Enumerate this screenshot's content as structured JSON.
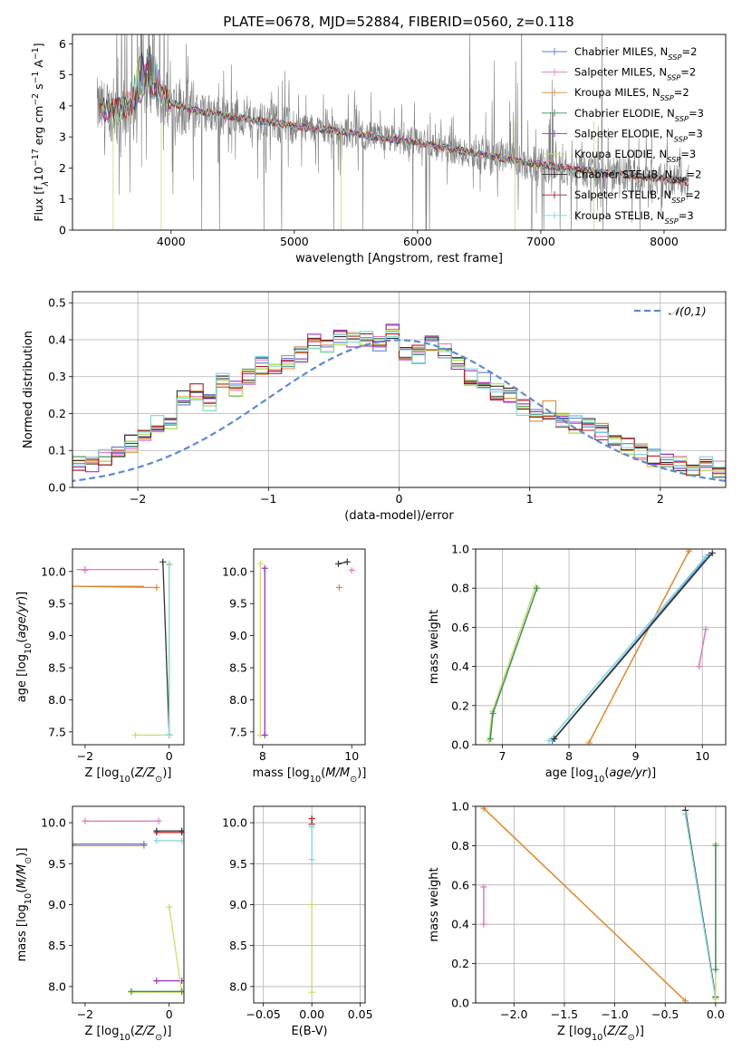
{
  "title": "PLATE=0678, MJD=52884, FIBERID=0560, z=0.118",
  "colors": {
    "Chabrier MILES": "#5b7fd6",
    "Salpeter MILES": "#e377c2",
    "Kroupa MILES": "#e0882e",
    "Chabrier ELODIE": "#3f8f5e",
    "Salpeter ELODIE": "#9b30c7",
    "Kroupa ELODIE": "#c5e06b",
    "Chabrier STELIB": "#333333",
    "Salpeter STELIB": "#b71c1c",
    "Kroupa STELIB": "#7fd8d8",
    "data": "#808080",
    "normal": "#5b8ad6"
  },
  "chart_data": [
    {
      "id": "spectrum",
      "type": "line",
      "title": "PLATE=0678, MJD=52884, FIBERID=0560, z=0.118",
      "xlabel": "wavelength [Angstrom, rest frame]",
      "ylabel": "Flux [f$_\\lambda$10$^{-17}$ erg cm$^{-2}$ s$^{-1}$ A$^{-1}$]",
      "ylabel_parts": {
        "pre": "Flux [f",
        "sub": "λ",
        "mid": "10",
        "exp1": "−17",
        "mid2": " erg cm",
        "exp2": "−2",
        "mid3": " s",
        "exp3": "−1",
        "end": " A",
        "exp4": "−1",
        "close": "]"
      },
      "xlim": [
        3200,
        8500
      ],
      "ylim": [
        0,
        6.3
      ],
      "xticks": [
        4000,
        5000,
        6000,
        7000,
        8000
      ],
      "yticks": [
        0,
        1,
        2,
        3,
        4,
        5,
        6
      ],
      "legend_position": "top-right",
      "legend": [
        {
          "name": "Chabrier MILES",
          "nssp": "2"
        },
        {
          "name": "Salpeter MILES",
          "nssp": "2"
        },
        {
          "name": "Kroupa MILES",
          "nssp": "2"
        },
        {
          "name": "Chabrier ELODIE",
          "nssp": "3"
        },
        {
          "name": "Salpeter ELODIE",
          "nssp": "3"
        },
        {
          "name": "Kroupa ELODIE",
          "nssp": "3"
        },
        {
          "name": "Chabrier STELIB",
          "nssp": "2"
        },
        {
          "name": "Salpeter STELIB",
          "nssp": "2"
        },
        {
          "name": "Kroupa STELIB",
          "nssp": "3"
        }
      ],
      "continuum": [
        [
          3400,
          3.95
        ],
        [
          3500,
          3.8
        ],
        [
          3600,
          3.9
        ],
        [
          3700,
          4.2
        ],
        [
          3800,
          4.8
        ],
        [
          3900,
          4.5
        ],
        [
          4000,
          4.1
        ],
        [
          4200,
          3.85
        ],
        [
          4500,
          3.65
        ],
        [
          5000,
          3.35
        ],
        [
          5500,
          3.1
        ],
        [
          6000,
          2.8
        ],
        [
          6500,
          2.45
        ],
        [
          7000,
          2.1
        ],
        [
          7500,
          1.85
        ],
        [
          8000,
          1.65
        ],
        [
          8200,
          1.55
        ]
      ],
      "data_wavelength_range": [
        3400,
        8200
      ]
    },
    {
      "id": "residuals",
      "type": "histogram",
      "xlabel": "(data-model)/error",
      "ylabel": "Normed distribution",
      "xlim": [
        -2.5,
        2.5
      ],
      "ylim": [
        0,
        0.53
      ],
      "xticks": [
        -2,
        -1,
        0,
        1,
        2
      ],
      "xtick_labels": [
        "−2",
        "−1",
        "0",
        "1",
        "2"
      ],
      "yticks": [
        0.0,
        0.1,
        0.2,
        0.3,
        0.4,
        0.5
      ],
      "ytick_labels": [
        "0.0",
        "0.1",
        "0.2",
        "0.3",
        "0.4",
        "0.5"
      ],
      "legend": "𝒩(0,1)",
      "legend_position": "top-right",
      "normal": {
        "mean": 0,
        "sigma": 1
      },
      "bin_width": 0.1,
      "base_histogram": [
        0.03,
        0.035,
        0.07,
        0.06,
        0.065,
        0.08,
        0.1,
        0.12,
        0.14,
        0.17,
        0.18,
        0.24,
        0.26,
        0.23,
        0.29,
        0.27,
        0.3,
        0.33,
        0.31,
        0.34,
        0.36,
        0.39,
        0.38,
        0.41,
        0.4,
        0.4,
        0.39,
        0.42,
        0.37,
        0.36,
        0.39,
        0.37,
        0.33,
        0.3,
        0.29,
        0.26,
        0.25,
        0.22,
        0.2,
        0.21,
        0.18,
        0.17,
        0.17,
        0.15,
        0.12,
        0.11,
        0.1,
        0.08,
        0.07,
        0.06,
        0.05,
        0.07,
        0.05,
        0.04,
        0.04,
        0.03
      ]
    },
    {
      "id": "age_vs_Z",
      "type": "scatter",
      "xlabel": "Z [log$_{10}$(Z/Z$_\\odot$)]",
      "ylabel": "age  [log$_{10}$(age/yr)]",
      "xlim": [
        -2.3,
        0.35
      ],
      "ylim": [
        7.3,
        10.35
      ],
      "xticks": [
        -2,
        0
      ],
      "xtick_labels": [
        "−2",
        "0"
      ],
      "yticks": [
        7.5,
        8.0,
        8.5,
        9.0,
        9.5,
        10.0
      ],
      "ytick_labels": [
        "7.5",
        "8.0",
        "8.5",
        "9.0",
        "9.5",
        "10.0"
      ],
      "series": [
        {
          "model": "Salpeter MILES",
          "points": [
            [
              -2.0,
              10.03
            ],
            [
              -2.0,
              10.02
            ]
          ],
          "xerr": [
            [
              -2.2,
              -0.25
            ]
          ]
        },
        {
          "model": "Kroupa MILES",
          "points": [
            [
              -2.3,
              9.77
            ],
            [
              -0.3,
              9.75
            ]
          ],
          "xerr": [
            [
              -2.3,
              -0.6
            ]
          ]
        },
        {
          "model": "Chabrier STELIB",
          "points": [
            [
              -0.15,
              10.15
            ],
            [
              0.0,
              7.45
            ]
          ]
        },
        {
          "model": "Kroupa ELODIE",
          "points": [
            [
              -0.8,
              7.45
            ],
            [
              0.0,
              7.45
            ],
            [
              0.0,
              10.1
            ]
          ]
        },
        {
          "model": "Kroupa STELIB",
          "points": [
            [
              0.0,
              10.12
            ],
            [
              0.0,
              7.46
            ]
          ]
        }
      ]
    },
    {
      "id": "age_vs_mass",
      "type": "scatter",
      "xlabel": "mass [log$_{10}$(M/M$_\\odot$)]",
      "ylabel": "",
      "xlim": [
        7.8,
        10.3
      ],
      "ylim": [
        7.3,
        10.35
      ],
      "xticks": [
        8,
        10
      ],
      "xtick_labels": [
        "8",
        "10"
      ],
      "yticks": [
        7.5,
        8.0,
        8.5,
        9.0,
        9.5,
        10.0
      ],
      "ytick_labels": [
        "7.5",
        "8.0",
        "8.5",
        "9.0",
        "9.5",
        "10.0"
      ],
      "series": [
        {
          "model": "Kroupa ELODIE",
          "points": [
            [
              7.95,
              10.12
            ],
            [
              7.95,
              7.45
            ]
          ]
        },
        {
          "model": "Salpeter ELODIE",
          "points": [
            [
              8.05,
              10.05
            ],
            [
              8.05,
              7.45
            ]
          ]
        },
        {
          "model": "Chabrier STELIB",
          "points": [
            [
              9.9,
              10.15
            ],
            [
              9.7,
              10.12
            ]
          ]
        },
        {
          "model": "Kroupa MILES",
          "points": [
            [
              9.72,
              9.75
            ]
          ]
        },
        {
          "model": "Salpeter MILES",
          "points": [
            [
              10.0,
              10.02
            ]
          ]
        }
      ]
    },
    {
      "id": "weight_vs_age",
      "type": "line",
      "xlabel": "age  [log$_{10}$(age/yr)]",
      "ylabel": "mass weight",
      "xlim": [
        6.6,
        10.35
      ],
      "ylim": [
        0,
        1.0
      ],
      "xticks": [
        7,
        8,
        9,
        10
      ],
      "xtick_labels": [
        "7",
        "8",
        "9",
        "10"
      ],
      "yticks": [
        0.0,
        0.2,
        0.4,
        0.6,
        0.8,
        1.0
      ],
      "ytick_labels": [
        "0.0",
        "0.2",
        "0.4",
        "0.6",
        "0.8",
        "1.0"
      ],
      "series": [
        {
          "model": "Kroupa ELODIE",
          "points": [
            [
              6.8,
              0.02
            ],
            [
              6.85,
              0.17
            ],
            [
              7.5,
              0.81
            ]
          ]
        },
        {
          "model": "Chabrier ELODIE",
          "points": [
            [
              6.82,
              0.03
            ],
            [
              6.86,
              0.16
            ],
            [
              7.52,
              0.8
            ]
          ]
        },
        {
          "model": "Kroupa MILES",
          "points": [
            [
              8.3,
              0.01
            ],
            [
              9.8,
              0.99
            ]
          ]
        },
        {
          "model": "Chabrier MILES",
          "points": [
            [
              7.75,
              0.02
            ],
            [
              10.1,
              0.97
            ]
          ]
        },
        {
          "model": "Kroupa STELIB",
          "points": [
            [
              7.7,
              0.02
            ],
            [
              10.05,
              0.96
            ]
          ]
        },
        {
          "model": "Chabrier STELIB",
          "points": [
            [
              7.78,
              0.03
            ],
            [
              10.15,
              0.98
            ]
          ]
        },
        {
          "model": "Salpeter MILES",
          "points": [
            [
              9.95,
              0.4
            ],
            [
              10.05,
              0.59
            ]
          ]
        }
      ]
    },
    {
      "id": "mass_vs_Z",
      "type": "scatter",
      "xlabel": "Z [log$_{10}$(Z/Z$_\\odot$)]",
      "ylabel": "mass [log$_{10}$(M/M$_\\odot$)]",
      "xlim": [
        -2.3,
        0.35
      ],
      "ylim": [
        7.8,
        10.2
      ],
      "xticks": [
        -2,
        0
      ],
      "xtick_labels": [
        "−2",
        "0"
      ],
      "yticks": [
        8.0,
        8.5,
        9.0,
        9.5,
        10.0
      ],
      "ytick_labels": [
        "8.0",
        "8.5",
        "9.0",
        "9.5",
        "10.0"
      ],
      "series": [
        {
          "model": "Salpeter MILES",
          "points": [
            [
              -2.0,
              10.02
            ],
            [
              -0.25,
              10.02
            ]
          ]
        },
        {
          "model": "Kroupa MILES",
          "points": [
            [
              -2.3,
              9.72
            ],
            [
              -0.6,
              9.72
            ]
          ]
        },
        {
          "model": "Chabrier MILES",
          "points": [
            [
              -2.3,
              9.74
            ],
            [
              -0.6,
              9.74
            ]
          ]
        },
        {
          "model": "Salpeter STELIB",
          "points": [
            [
              -0.3,
              9.88
            ],
            [
              0.3,
              9.88
            ]
          ]
        },
        {
          "model": "Chabrier STELIB",
          "points": [
            [
              -0.3,
              9.9
            ],
            [
              0.3,
              9.9
            ]
          ]
        },
        {
          "model": "Kroupa STELIB",
          "points": [
            [
              -0.3,
              9.78
            ],
            [
              0.3,
              9.78
            ]
          ]
        },
        {
          "model": "Salpeter ELODIE",
          "points": [
            [
              -0.3,
              8.07
            ],
            [
              0.3,
              8.07
            ]
          ]
        },
        {
          "model": "Kroupa ELODIE",
          "points": [
            [
              -0.9,
              7.93
            ],
            [
              0.3,
              7.93
            ],
            [
              0.0,
              8.97
            ]
          ]
        },
        {
          "model": "Chabrier ELODIE",
          "points": [
            [
              -0.9,
              7.94
            ],
            [
              0.3,
              7.94
            ]
          ]
        }
      ]
    },
    {
      "id": "mass_vs_ebv",
      "type": "scatter",
      "xlabel": "E(B-V)",
      "ylabel": "",
      "xlim": [
        -0.06,
        0.055
      ],
      "ylim": [
        7.8,
        10.2
      ],
      "xticks": [
        -0.05,
        0.0,
        0.05
      ],
      "xtick_labels": [
        "−0.05",
        "0.00",
        "0.05"
      ],
      "yticks": [
        8.0,
        8.5,
        9.0,
        9.5,
        10.0
      ],
      "ytick_labels": [
        "8.0",
        "8.5",
        "9.0",
        "9.5",
        "10.0"
      ],
      "series": [
        {
          "model": "Salpeter STELIB",
          "points": [
            [
              0.0,
              10.05
            ],
            [
              0.0,
              9.98
            ]
          ]
        },
        {
          "model": "Kroupa STELIB",
          "points": [
            [
              0.0,
              9.95
            ],
            [
              0.0,
              9.55
            ]
          ]
        },
        {
          "model": "Kroupa ELODIE",
          "points": [
            [
              0.0,
              9.0
            ],
            [
              0.0,
              7.93
            ]
          ]
        }
      ]
    },
    {
      "id": "weight_vs_Z",
      "type": "line",
      "xlabel": "Z [log$_{10}$(Z/Z$_\\odot$)]",
      "ylabel": "mass weight",
      "xlim": [
        -2.38,
        0.1
      ],
      "ylim": [
        0,
        1.0
      ],
      "xticks": [
        -2.0,
        -1.5,
        -1.0,
        -0.5,
        0.0
      ],
      "xtick_labels": [
        "−2.0",
        "−1.5",
        "−1.0",
        "−0.5",
        "0.0"
      ],
      "yticks": [
        0.0,
        0.2,
        0.4,
        0.6,
        0.8,
        1.0
      ],
      "ytick_labels": [
        "0.0",
        "0.2",
        "0.4",
        "0.6",
        "0.8",
        "1.0"
      ],
      "series": [
        {
          "model": "Kroupa MILES",
          "points": [
            [
              -2.3,
              0.99
            ],
            [
              -0.3,
              0.01
            ]
          ]
        },
        {
          "model": "Salpeter MILES",
          "points": [
            [
              -2.3,
              0.4
            ],
            [
              -2.3,
              0.59
            ]
          ]
        },
        {
          "model": "Chabrier STELIB",
          "points": [
            [
              -0.3,
              0.98
            ],
            [
              0.0,
              0.03
            ]
          ]
        },
        {
          "model": "Kroupa STELIB",
          "points": [
            [
              -0.3,
              0.96
            ],
            [
              0.0,
              0.02
            ]
          ]
        },
        {
          "model": "Kroupa ELODIE",
          "points": [
            [
              0.0,
              0.81
            ],
            [
              0.0,
              0.02
            ]
          ]
        },
        {
          "model": "Chabrier ELODIE",
          "points": [
            [
              0.0,
              0.8
            ],
            [
              0.0,
              0.17
            ]
          ]
        }
      ]
    }
  ]
}
